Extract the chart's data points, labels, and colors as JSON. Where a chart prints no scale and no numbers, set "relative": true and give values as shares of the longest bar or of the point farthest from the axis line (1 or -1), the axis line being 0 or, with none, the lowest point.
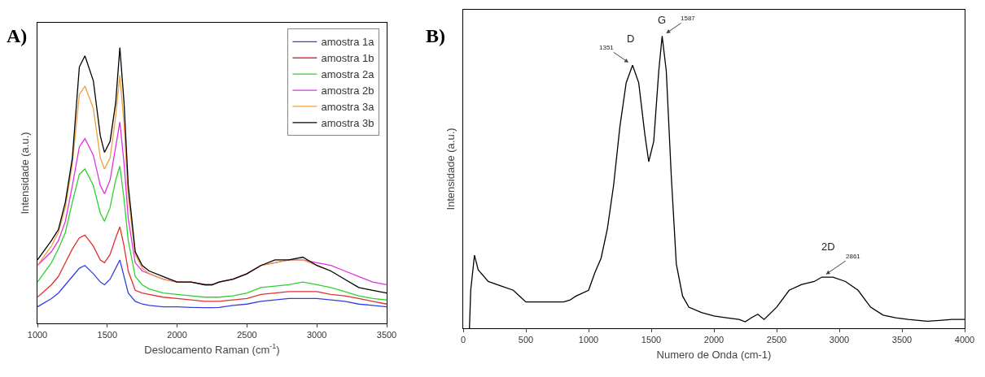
{
  "chart_data": [
    {
      "type": "line",
      "title": "A)",
      "xlabel": "Deslocamento Raman (cm$^{-1}$)",
      "ylabel": "Intensidade (a.u.)",
      "relative": true,
      "legend": "top right",
      "grid": false,
      "x": [
        1000,
        1100,
        1150,
        1200,
        1250,
        1300,
        1340,
        1400,
        1450,
        1480,
        1520,
        1560,
        1590,
        1620,
        1650,
        1700,
        1750,
        1800,
        1900,
        2000,
        2100,
        2200,
        2250,
        2300,
        2400,
        2500,
        2600,
        2700,
        2800,
        2900,
        3000,
        3100,
        3200,
        3300,
        3400,
        3500
      ],
      "xlim": [
        1000,
        3500
      ],
      "xticks": [
        1000,
        1500,
        2000,
        2500,
        3000,
        3500
      ],
      "series": [
        {
          "name": "amostra 1a",
          "color": "#3040e0",
          "values": [
            0.06,
            0.09,
            0.11,
            0.14,
            0.17,
            0.2,
            0.21,
            0.18,
            0.15,
            0.14,
            0.16,
            0.2,
            0.23,
            0.17,
            0.11,
            0.08,
            0.07,
            0.065,
            0.06,
            0.06,
            0.058,
            0.057,
            0.057,
            0.058,
            0.065,
            0.07,
            0.08,
            0.085,
            0.09,
            0.09,
            0.09,
            0.085,
            0.08,
            0.07,
            0.065,
            0.06
          ]
        },
        {
          "name": "amostra 1b",
          "color": "#e03030",
          "values": [
            0.095,
            0.14,
            0.17,
            0.22,
            0.27,
            0.31,
            0.32,
            0.28,
            0.23,
            0.22,
            0.25,
            0.31,
            0.35,
            0.28,
            0.19,
            0.12,
            0.11,
            0.105,
            0.095,
            0.09,
            0.085,
            0.08,
            0.08,
            0.08,
            0.085,
            0.09,
            0.105,
            0.11,
            0.115,
            0.115,
            0.115,
            0.105,
            0.1,
            0.09,
            0.08,
            0.07
          ]
        },
        {
          "name": "amostra 2a",
          "color": "#30d030",
          "values": [
            0.15,
            0.22,
            0.27,
            0.33,
            0.44,
            0.54,
            0.56,
            0.5,
            0.4,
            0.37,
            0.42,
            0.52,
            0.57,
            0.45,
            0.3,
            0.17,
            0.14,
            0.125,
            0.11,
            0.105,
            0.1,
            0.095,
            0.095,
            0.095,
            0.1,
            0.11,
            0.13,
            0.135,
            0.14,
            0.15,
            0.14,
            0.13,
            0.115,
            0.1,
            0.09,
            0.085
          ]
        },
        {
          "name": "amostra 2b",
          "color": "#e030e0",
          "values": [
            0.21,
            0.26,
            0.3,
            0.37,
            0.5,
            0.64,
            0.67,
            0.61,
            0.5,
            0.47,
            0.52,
            0.64,
            0.73,
            0.58,
            0.38,
            0.22,
            0.19,
            0.18,
            0.16,
            0.15,
            0.15,
            0.14,
            0.14,
            0.15,
            0.16,
            0.18,
            0.21,
            0.22,
            0.23,
            0.23,
            0.22,
            0.21,
            0.19,
            0.17,
            0.15,
            0.14
          ]
        },
        {
          "name": "amostra 3a",
          "color": "#f0a040",
          "values": [
            0.21,
            0.28,
            0.33,
            0.42,
            0.58,
            0.83,
            0.86,
            0.78,
            0.6,
            0.56,
            0.6,
            0.75,
            0.9,
            0.72,
            0.46,
            0.25,
            0.2,
            0.18,
            0.16,
            0.15,
            0.15,
            0.14,
            0.14,
            0.15,
            0.16,
            0.18,
            0.21,
            0.22,
            0.23,
            0.23,
            0.21,
            0.19,
            null,
            null,
            null,
            null
          ]
        },
        {
          "name": "amostra 3b",
          "color": "#000000",
          "values": [
            0.23,
            0.3,
            0.34,
            0.44,
            0.6,
            0.93,
            0.97,
            0.88,
            0.68,
            0.62,
            0.66,
            0.8,
            1.0,
            0.8,
            0.5,
            0.26,
            0.21,
            0.19,
            0.17,
            0.15,
            0.15,
            0.14,
            0.14,
            0.15,
            0.16,
            0.18,
            0.21,
            0.23,
            0.23,
            0.24,
            0.21,
            0.19,
            0.16,
            0.13,
            0.12,
            0.11
          ]
        }
      ]
    },
    {
      "type": "line",
      "title": "B)",
      "xlabel": "Numero de Onda (cm-1)",
      "ylabel": "Intensidade (a.u.)",
      "relative": true,
      "legend": false,
      "grid": false,
      "x": [
        50,
        60,
        90,
        120,
        200,
        300,
        400,
        450,
        500,
        600,
        700,
        800,
        850,
        900,
        1000,
        1050,
        1100,
        1150,
        1200,
        1250,
        1300,
        1351,
        1400,
        1450,
        1480,
        1520,
        1560,
        1587,
        1620,
        1660,
        1700,
        1750,
        1800,
        1900,
        2000,
        2100,
        2200,
        2250,
        2300,
        2350,
        2400,
        2500,
        2600,
        2700,
        2800,
        2861,
        2950,
        3050,
        3150,
        3250,
        3350,
        3450,
        3550,
        3700,
        3800,
        3900,
        4000
      ],
      "xlim": [
        0,
        4000
      ],
      "xticks": [
        0,
        500,
        1000,
        1500,
        2000,
        2500,
        3000,
        3500,
        4000
      ],
      "series": [
        {
          "color": "#000000",
          "values": [
            0,
            0.13,
            0.25,
            0.2,
            0.16,
            0.145,
            0.13,
            0.11,
            0.09,
            0.09,
            0.09,
            0.09,
            0.096,
            0.11,
            0.13,
            0.19,
            0.24,
            0.34,
            0.49,
            0.69,
            0.84,
            0.9,
            0.84,
            0.66,
            0.57,
            0.64,
            0.88,
            1.0,
            0.88,
            0.52,
            0.22,
            0.11,
            0.072,
            0.054,
            0.042,
            0.036,
            0.03,
            0.022,
            0.036,
            0.048,
            0.03,
            0.072,
            0.13,
            0.15,
            0.16,
            0.175,
            0.175,
            0.16,
            0.13,
            0.072,
            0.045,
            0.036,
            0.03,
            0.024,
            0.027,
            0.03,
            0.03
          ]
        }
      ],
      "annotations": [
        {
          "text": "D",
          "x": 1351,
          "y": 0.9
        },
        {
          "text": "1351",
          "x": 1351,
          "y": 0.9
        },
        {
          "text": "G",
          "x": 1587,
          "y": 1.0
        },
        {
          "text": "1587",
          "x": 1587,
          "y": 1.0
        },
        {
          "text": "2D",
          "x": 2861,
          "y": 0.175
        },
        {
          "text": "2861",
          "x": 2861,
          "y": 0.175
        }
      ]
    }
  ]
}
